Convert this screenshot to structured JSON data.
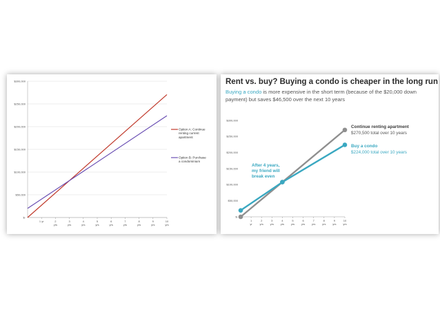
{
  "chart_data": [
    {
      "type": "line",
      "title": "",
      "xlabel": "",
      "ylabel": "",
      "x_ticks": [
        {
          "n": "1 yr",
          "u": ""
        },
        {
          "n": "2",
          "u": "yrs"
        },
        {
          "n": "3",
          "u": "yrs"
        },
        {
          "n": "4",
          "u": "yrs"
        },
        {
          "n": "5",
          "u": "yrs"
        },
        {
          "n": "6",
          "u": "yrs"
        },
        {
          "n": "7",
          "u": "yrs"
        },
        {
          "n": "8",
          "u": "yrs"
        },
        {
          "n": "9",
          "u": "yrs"
        },
        {
          "n": "10",
          "u": "yrs"
        }
      ],
      "y_ticks": [
        {
          "value": 0,
          "label": "$-"
        },
        {
          "value": 50000,
          "label": "$50,000"
        },
        {
          "value": 100000,
          "label": "$100,000"
        },
        {
          "value": 150000,
          "label": "$150,000"
        },
        {
          "value": 200000,
          "label": "$200,000"
        },
        {
          "value": 250000,
          "label": "$250,000"
        },
        {
          "value": 300000,
          "label": "$300,000"
        }
      ],
      "ylim": [
        0,
        300000
      ],
      "xlim": [
        0,
        10
      ],
      "grid": "horizontal",
      "legend_position": "right",
      "series": [
        {
          "name": "Option A: Continue renting current apartment",
          "legend_lines": [
            "Option A: Continue",
            "renting current",
            "apartment"
          ],
          "color": "#c0392b",
          "x": [
            0,
            10
          ],
          "y": [
            0,
            270500
          ]
        },
        {
          "name": "Option B: Purchase a condominium",
          "legend_lines": [
            "Option B: Purchase",
            "a condominium"
          ],
          "color": "#6a4fb3",
          "x": [
            0,
            10
          ],
          "y": [
            20000,
            224000
          ]
        }
      ]
    },
    {
      "type": "line",
      "title": "Rent vs. buy? Buying a condo is cheaper in the long run",
      "subtitle_highlight": "Buying a condo",
      "subtitle_rest": " is more expensive in the short term (because of the $20,000 down payment) but saves $46,500 over the next 10 years",
      "xlabel": "",
      "ylabel": "",
      "x_ticks": [
        {
          "n": "1",
          "u": "yr"
        },
        {
          "n": "2",
          "u": "yrs"
        },
        {
          "n": "3",
          "u": "yrs"
        },
        {
          "n": "4",
          "u": "yrs"
        },
        {
          "n": "5",
          "u": "yrs"
        },
        {
          "n": "6",
          "u": "yrs"
        },
        {
          "n": "7",
          "u": "yrs"
        },
        {
          "n": "8",
          "u": "yrs"
        },
        {
          "n": "9",
          "u": "yrs"
        },
        {
          "n": "10",
          "u": "yrs"
        }
      ],
      "y_ticks": [
        {
          "value": 0,
          "label": "$-"
        },
        {
          "value": 50000,
          "label": "$50,000"
        },
        {
          "value": 100000,
          "label": "$100,000"
        },
        {
          "value": 150000,
          "label": "$150,000"
        },
        {
          "value": 200000,
          "label": "$200,000"
        },
        {
          "value": 250000,
          "label": "$250,000"
        },
        {
          "value": 300000,
          "label": "$300,000"
        }
      ],
      "ylim": [
        0,
        300000
      ],
      "xlim": [
        0,
        10
      ],
      "grid": "none",
      "series": [
        {
          "name": "Continue renting apartment",
          "total_label": "$270,500 total over 10 years",
          "color": "#8f8f8f",
          "x": [
            0,
            4,
            10
          ],
          "y": [
            0,
            108000,
            270500
          ]
        },
        {
          "name": "Buy a condo",
          "total_label": "$224,000 total over 10 years",
          "color": "#3aa8c1",
          "x": [
            0,
            4,
            10
          ],
          "y": [
            20000,
            108000,
            224000
          ]
        }
      ],
      "annotation": [
        "After 4 years,",
        "my friend will",
        "break even"
      ],
      "annotation_color": "#3aa8c1"
    }
  ]
}
